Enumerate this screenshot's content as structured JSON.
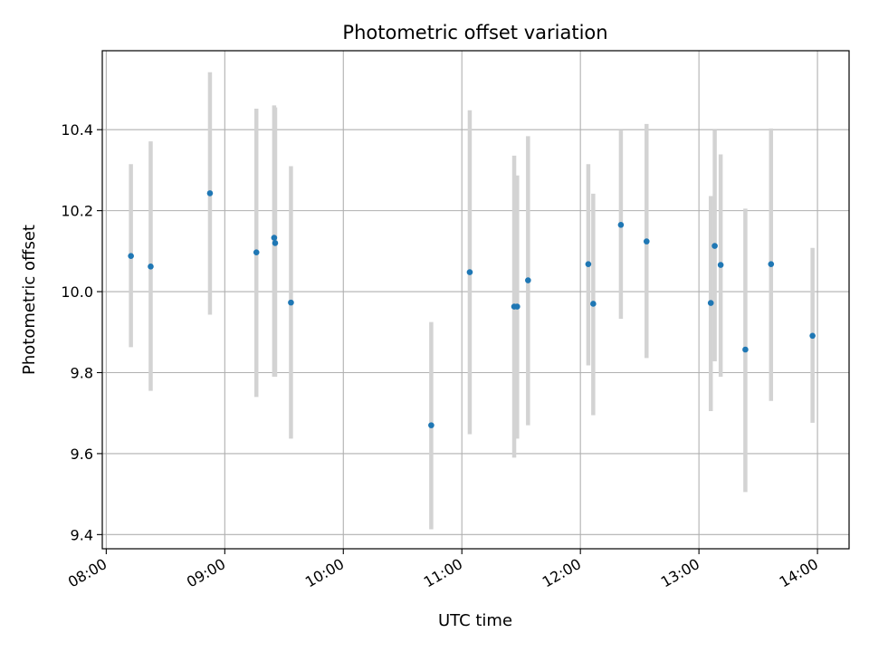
{
  "chart_data": {
    "type": "scatter",
    "title": "Photometric offset variation",
    "xlabel": "UTC time",
    "ylabel": "Photometric offset",
    "x_unit": "minutes since 08:00 UTC",
    "xlim": [
      -2,
      376
    ],
    "ylim": [
      9.365,
      10.595
    ],
    "grid": true,
    "x_ticks": [
      {
        "value": 0,
        "label": "08:00"
      },
      {
        "value": 60,
        "label": "09:00"
      },
      {
        "value": 120,
        "label": "10:00"
      },
      {
        "value": 180,
        "label": "11:00"
      },
      {
        "value": 240,
        "label": "12:00"
      },
      {
        "value": 300,
        "label": "13:00"
      },
      {
        "value": 360,
        "label": "14:00"
      }
    ],
    "y_ticks": [
      {
        "value": 9.4,
        "label": "9.4"
      },
      {
        "value": 9.6,
        "label": "9.6"
      },
      {
        "value": 9.8,
        "label": "9.8"
      },
      {
        "value": 10.0,
        "label": "10.0"
      },
      {
        "value": 10.2,
        "label": "10.2"
      },
      {
        "value": 10.4,
        "label": "10.4"
      }
    ],
    "colors": {
      "marker": "#1f77b4",
      "errorbar": "#d3d3d3",
      "grid": "#b0b0b0",
      "axes": "#000000"
    },
    "series": [
      {
        "name": "offset",
        "points": [
          {
            "x": 12.5,
            "y": 10.088,
            "low": 9.863,
            "high": 10.315
          },
          {
            "x": 22.5,
            "y": 10.062,
            "low": 9.755,
            "high": 10.371
          },
          {
            "x": 52.5,
            "y": 10.243,
            "low": 9.943,
            "high": 10.542
          },
          {
            "x": 76,
            "y": 10.097,
            "low": 9.74,
            "high": 10.452
          },
          {
            "x": 85,
            "y": 10.133,
            "low": 9.79,
            "high": 10.46
          },
          {
            "x": 85.5,
            "y": 10.12,
            "low": 9.79,
            "high": 10.455
          },
          {
            "x": 93.5,
            "y": 9.973,
            "low": 9.637,
            "high": 10.31
          },
          {
            "x": 164.5,
            "y": 9.67,
            "low": 9.413,
            "high": 9.925
          },
          {
            "x": 184,
            "y": 10.048,
            "low": 9.648,
            "high": 10.448
          },
          {
            "x": 206.5,
            "y": 9.963,
            "low": 9.59,
            "high": 10.336
          },
          {
            "x": 208,
            "y": 9.963,
            "low": 9.637,
            "high": 10.287
          },
          {
            "x": 213.5,
            "y": 10.028,
            "low": 9.67,
            "high": 10.384
          },
          {
            "x": 244,
            "y": 10.068,
            "low": 9.818,
            "high": 10.315
          },
          {
            "x": 246.5,
            "y": 9.97,
            "low": 9.695,
            "high": 10.242
          },
          {
            "x": 260.5,
            "y": 10.165,
            "low": 9.933,
            "high": 10.398
          },
          {
            "x": 273.5,
            "y": 10.124,
            "low": 9.836,
            "high": 10.414
          },
          {
            "x": 306,
            "y": 9.972,
            "low": 9.705,
            "high": 10.236
          },
          {
            "x": 308,
            "y": 10.113,
            "low": 9.828,
            "high": 10.4
          },
          {
            "x": 311,
            "y": 10.066,
            "low": 9.79,
            "high": 10.339
          },
          {
            "x": 323.5,
            "y": 9.857,
            "low": 9.505,
            "high": 10.205
          },
          {
            "x": 336.5,
            "y": 10.068,
            "low": 9.73,
            "high": 10.403
          },
          {
            "x": 357.5,
            "y": 9.891,
            "low": 9.676,
            "high": 10.108
          }
        ]
      }
    ]
  }
}
